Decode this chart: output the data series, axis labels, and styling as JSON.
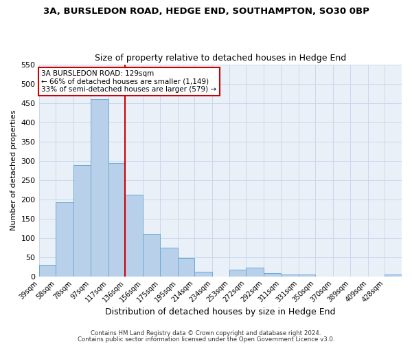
{
  "title": "3A, BURSLEDON ROAD, HEDGE END, SOUTHAMPTON, SO30 0BP",
  "subtitle": "Size of property relative to detached houses in Hedge End",
  "xlabel": "Distribution of detached houses by size in Hedge End",
  "ylabel": "Number of detached properties",
  "bin_labels": [
    "39sqm",
    "58sqm",
    "78sqm",
    "97sqm",
    "117sqm",
    "136sqm",
    "156sqm",
    "175sqm",
    "195sqm",
    "214sqm",
    "234sqm",
    "253sqm",
    "272sqm",
    "292sqm",
    "311sqm",
    "331sqm",
    "350sqm",
    "370sqm",
    "389sqm",
    "409sqm",
    "428sqm"
  ],
  "bar_heights": [
    30,
    192,
    288,
    460,
    293,
    212,
    110,
    74,
    47,
    12,
    0,
    18,
    22,
    8,
    5,
    4,
    0,
    0,
    0,
    0,
    5
  ],
  "bar_color": "#b8d0ea",
  "bar_edge_color": "#6aaad4",
  "bin_edges": [
    39,
    58,
    78,
    97,
    117,
    136,
    156,
    175,
    195,
    214,
    234,
    253,
    272,
    292,
    311,
    331,
    350,
    370,
    389,
    409,
    428,
    447
  ],
  "ylim": [
    0,
    550
  ],
  "yticks": [
    0,
    50,
    100,
    150,
    200,
    250,
    300,
    350,
    400,
    450,
    500,
    550
  ],
  "annotation_title": "3A BURSLEDON ROAD: 129sqm",
  "annotation_line1": "← 66% of detached houses are smaller (1,149)",
  "annotation_line2": "33% of semi-detached houses are larger (579) →",
  "annotation_box_color": "#ffffff",
  "annotation_box_edge": "#cc0000",
  "ref_line_color": "#cc0000",
  "ref_line_x": 136,
  "grid_color": "#c8d8ec",
  "bg_color": "#eaf0f8",
  "footer1": "Contains HM Land Registry data © Crown copyright and database right 2024.",
  "footer2": "Contains public sector information licensed under the Open Government Licence v3.0."
}
